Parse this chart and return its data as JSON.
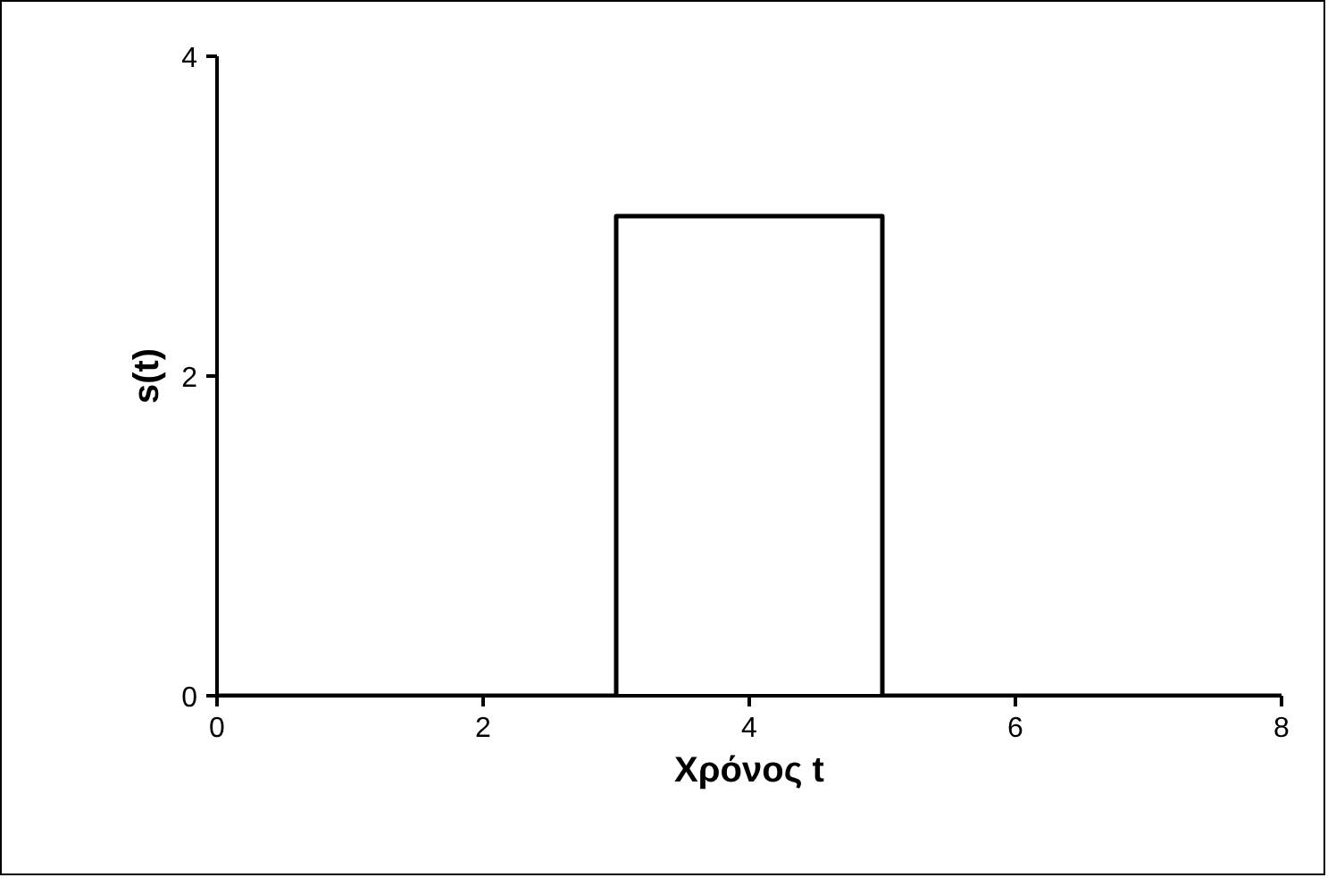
{
  "chart_data": {
    "type": "line",
    "xlabel": "Χρόνος t",
    "ylabel": "s(t)",
    "x": [
      0,
      3,
      3,
      5,
      5,
      8
    ],
    "series": [
      {
        "color": "#000000",
        "values": [
          0,
          0,
          3,
          3,
          0,
          0
        ]
      }
    ],
    "xlim": [
      0,
      8
    ],
    "ylim": [
      0,
      4
    ],
    "xticks": [
      0,
      2,
      4,
      6,
      8
    ],
    "yticks": [
      0,
      2,
      4
    ],
    "grid": false,
    "marker": "none",
    "line_style": "solid"
  }
}
